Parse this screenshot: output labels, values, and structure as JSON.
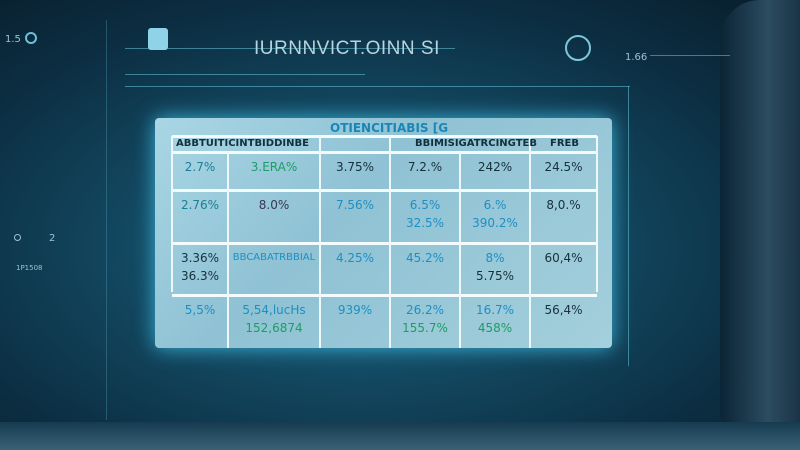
{
  "header": {
    "title": "IURNNVICT.OINN SI",
    "left_label": "1.5",
    "right_label": "1.66",
    "side_label": "1P1508",
    "side_num": "2"
  },
  "panel": {
    "title": "OTIENCITIABIS [G",
    "headers": [
      "ABBTUITICINTBIDDINBE",
      "",
      "BBIMISIGATRCINGTEB",
      "FREB"
    ],
    "rows": [
      [
        [
          "2.7%"
        ],
        [
          "3.ERA%"
        ],
        [
          "3.75%"
        ],
        [
          "7.2.%"
        ],
        [
          "242%"
        ],
        [
          "24.5%"
        ]
      ],
      [
        [
          "2.76%"
        ],
        [
          "8.0%"
        ],
        [
          "7.56%"
        ],
        [
          "6.5%",
          "32.5%"
        ],
        [
          "6.%",
          "390.2%"
        ],
        [
          "8,0.%"
        ]
      ],
      [
        [
          "3.36%",
          "36.3%"
        ],
        [
          "BBCABATRBBIAL"
        ],
        [
          "4.25%"
        ],
        [
          "45.2%"
        ],
        [
          "8%",
          "5.75%"
        ],
        [
          "60,4%"
        ]
      ],
      [
        [
          "5,5%"
        ],
        [
          "5,54,lucHs",
          "152,6874"
        ],
        [
          "939%"
        ],
        [
          "26.2%",
          "155.7%"
        ],
        [
          "16.7%",
          "458%"
        ],
        [
          "56,4%"
        ]
      ]
    ]
  },
  "colors": {
    "accent": "#1d8fc4",
    "green": "#1e9c64",
    "panel": "#a9d6e5"
  }
}
